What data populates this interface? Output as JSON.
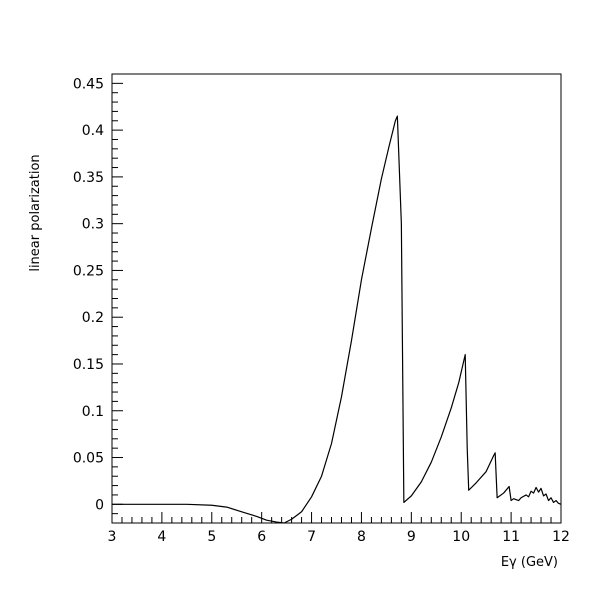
{
  "chart_data": {
    "type": "line",
    "title": "",
    "xlabel": "Eγ (GeV)",
    "ylabel": "linear polarization",
    "xlim": [
      3,
      12
    ],
    "ylim": [
      -0.02,
      0.46
    ],
    "xticks": [
      3,
      4,
      5,
      6,
      7,
      8,
      9,
      10,
      11,
      12
    ],
    "xtick_labels": [
      "3",
      "4",
      "5",
      "6",
      "7",
      "8",
      "9",
      "10",
      "11",
      "12"
    ],
    "yticks": [
      0,
      0.05,
      0.1,
      0.15,
      0.2,
      0.25,
      0.3,
      0.35,
      0.4,
      0.45
    ],
    "ytick_labels": [
      "0",
      "0.05",
      "0.1",
      "0.15",
      "0.2",
      "0.25",
      "0.3",
      "0.35",
      "0.4",
      "0.45"
    ],
    "grid": false,
    "legend": "none",
    "line_color": "#000000",
    "series": [
      {
        "x": [
          3.0,
          3.5,
          4.0,
          4.5,
          5.0,
          5.3,
          5.6,
          5.9,
          6.1,
          6.3,
          6.45,
          6.6,
          6.8,
          7.0,
          7.2,
          7.4,
          7.6,
          7.8,
          8.0,
          8.2,
          8.4,
          8.55,
          8.68,
          8.72,
          8.8,
          8.85,
          9.0,
          9.2,
          9.4,
          9.6,
          9.8,
          9.95,
          10.08,
          10.12,
          10.15,
          10.3,
          10.5,
          10.65,
          10.68,
          10.72,
          10.85,
          10.96,
          11.0,
          11.05,
          11.15,
          11.2,
          11.3,
          11.35,
          11.4,
          11.45,
          11.5,
          11.55,
          11.6,
          11.65,
          11.7,
          11.75,
          11.8,
          11.85,
          11.9,
          11.95,
          12.0
        ],
        "y": [
          0.0,
          0.0,
          0.0,
          0.0,
          -0.001,
          -0.003,
          -0.008,
          -0.013,
          -0.017,
          -0.019,
          -0.02,
          -0.016,
          -0.008,
          0.008,
          0.03,
          0.065,
          0.115,
          0.175,
          0.24,
          0.295,
          0.348,
          0.382,
          0.41,
          0.415,
          0.3,
          0.002,
          0.009,
          0.024,
          0.045,
          0.072,
          0.103,
          0.13,
          0.16,
          0.06,
          0.015,
          0.023,
          0.035,
          0.052,
          0.055,
          0.007,
          0.012,
          0.019,
          0.004,
          0.006,
          0.004,
          0.007,
          0.01,
          0.008,
          0.014,
          0.012,
          0.018,
          0.013,
          0.017,
          0.009,
          0.011,
          0.004,
          0.007,
          0.002,
          0.004,
          0.001,
          0.0
        ]
      }
    ]
  }
}
